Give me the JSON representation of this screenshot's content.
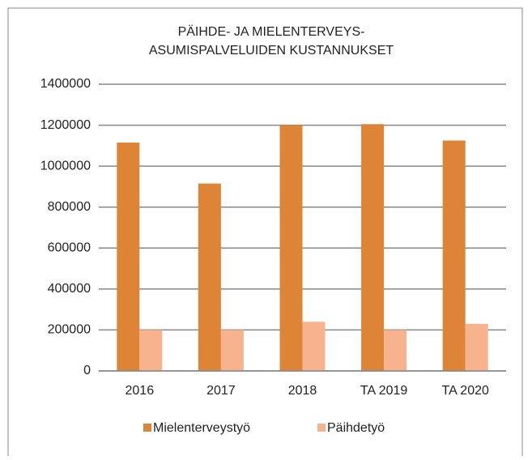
{
  "chart_data": {
    "type": "bar",
    "title": [
      "PÄIHDE- JA MIELENTERVEYS-",
      "ASUMISPALVELUIDEN  KUSTANNUKSET"
    ],
    "categories": [
      "2016",
      "2017",
      "2018",
      "TA 2019",
      "TA 2020"
    ],
    "series": [
      {
        "name": "Mielenterveystyö",
        "color": "#dd8437",
        "values": [
          1115000,
          915000,
          1200000,
          1205000,
          1125000
        ]
      },
      {
        "name": "Päihdetyö",
        "color": "#f7b38d",
        "values": [
          200000,
          200000,
          240000,
          200000,
          230000
        ]
      }
    ],
    "ylim": [
      0,
      1400000
    ],
    "yticks": [
      0,
      200000,
      400000,
      600000,
      800000,
      1000000,
      1200000,
      1400000
    ],
    "grid": true,
    "legend": "bottom"
  }
}
